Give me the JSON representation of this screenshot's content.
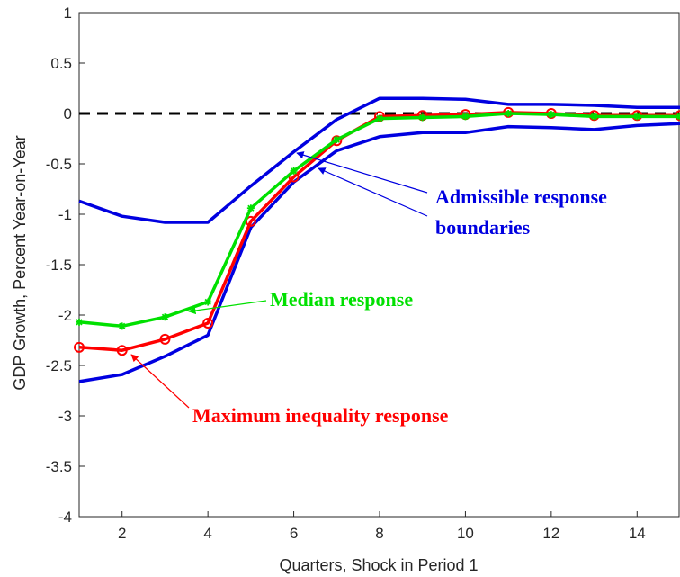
{
  "chart_data": {
    "type": "line",
    "xlabel": "Quarters, Shock in Period 1",
    "ylabel": "GDP Growth, Percent Year-on-Year",
    "xlim": [
      1,
      15
    ],
    "ylim": [
      -4,
      1
    ],
    "xticks": [
      2,
      4,
      6,
      8,
      10,
      12,
      14
    ],
    "yticks": [
      1,
      0.5,
      0,
      -0.5,
      -1,
      -1.5,
      -2,
      -2.5,
      -3,
      -3.5,
      -4
    ],
    "ytick_labels": [
      "1",
      "0.5",
      "0",
      "-0.5",
      "-1",
      "-1.5",
      "-2",
      "-2.5",
      "-3",
      "-3.5",
      "-4"
    ],
    "grid": false,
    "x": [
      1,
      2,
      3,
      4,
      5,
      6,
      7,
      8,
      9,
      10,
      11,
      12,
      13,
      14,
      15
    ],
    "series": [
      {
        "id": "upper_bound",
        "color": "#0000e0",
        "marker": "none",
        "values": [
          -0.87,
          -1.02,
          -1.08,
          -1.08,
          -0.72,
          -0.38,
          -0.06,
          0.15,
          0.15,
          0.14,
          0.09,
          0.09,
          0.08,
          0.06,
          0.06
        ]
      },
      {
        "id": "lower_bound",
        "color": "#0000e0",
        "marker": "none",
        "values": [
          -2.66,
          -2.59,
          -2.41,
          -2.2,
          -1.13,
          -0.68,
          -0.37,
          -0.23,
          -0.19,
          -0.19,
          -0.13,
          -0.14,
          -0.16,
          -0.12,
          -0.1
        ]
      },
      {
        "id": "max_inequality",
        "color": "#ff0000",
        "marker": "circle",
        "values": [
          -2.32,
          -2.35,
          -2.24,
          -2.08,
          -1.07,
          -0.63,
          -0.27,
          -0.03,
          -0.02,
          -0.01,
          0.01,
          0.0,
          -0.02,
          -0.02,
          -0.02
        ]
      },
      {
        "id": "median",
        "color": "#00e000",
        "marker": "star",
        "values": [
          -2.07,
          -2.11,
          -2.02,
          -1.87,
          -0.94,
          -0.57,
          -0.26,
          -0.05,
          -0.04,
          -0.03,
          0.0,
          -0.01,
          -0.03,
          -0.03,
          -0.03
        ]
      }
    ],
    "zero_line": {
      "y": 0,
      "style": "dashed",
      "color": "#000000"
    },
    "annotations": {
      "boundaries_line1": "Admissible response",
      "boundaries_line2": "boundaries",
      "median": "Median response",
      "max_inequality": "Maximum inequality response"
    },
    "colors": {
      "blue": "#0000e0",
      "green": "#00e000",
      "red": "#ff0000"
    }
  }
}
